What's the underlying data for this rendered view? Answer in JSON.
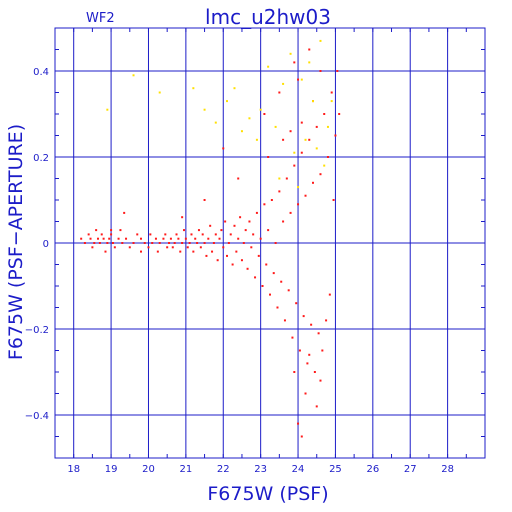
{
  "chart_data": {
    "type": "scatter",
    "title": "lmc_u2hw03",
    "subtitle": "WF2",
    "xlabel": "F675W (PSF)",
    "ylabel": "F675W (PSF−APERTURE)",
    "xlim": [
      17.5,
      29.0
    ],
    "ylim": [
      -0.5,
      0.5
    ],
    "xticks": [
      18,
      19,
      20,
      21,
      22,
      23,
      24,
      25,
      26,
      27,
      28
    ],
    "yticks": [
      -0.4,
      -0.2,
      0,
      0.2,
      0.4
    ],
    "xtick_labels": [
      "18",
      "19",
      "20",
      "21",
      "22",
      "23",
      "24",
      "25",
      "26",
      "27",
      "28"
    ],
    "ytick_labels": [
      "−0.4",
      "−0.2",
      "0",
      "0.2",
      "0.4"
    ],
    "grid": true,
    "colors": {
      "axes": "#1c1cc8",
      "primary": "#ff1a1a",
      "secondary": "#ffe000",
      "background": "#ffffff"
    },
    "series": [
      {
        "color": "#ff1a1a",
        "points": [
          [
            18.2,
            0.01
          ],
          [
            18.3,
            0.0
          ],
          [
            18.4,
            0.02
          ],
          [
            18.45,
            0.01
          ],
          [
            18.5,
            -0.01
          ],
          [
            18.55,
            0.0
          ],
          [
            18.6,
            0.03
          ],
          [
            18.65,
            0.01
          ],
          [
            18.7,
            0.0
          ],
          [
            18.75,
            0.02
          ],
          [
            18.8,
            0.01
          ],
          [
            18.85,
            -0.02
          ],
          [
            18.9,
            0.0
          ],
          [
            18.95,
            0.01
          ],
          [
            19.0,
            0.02
          ],
          [
            19.05,
            0.0
          ],
          [
            19.1,
            -0.01
          ],
          [
            19.2,
            0.01
          ],
          [
            19.25,
            0.03
          ],
          [
            19.3,
            0.0
          ],
          [
            19.35,
            0.07
          ],
          [
            19.4,
            0.01
          ],
          [
            19.5,
            -0.01
          ],
          [
            19.6,
            0.0
          ],
          [
            19.7,
            0.02
          ],
          [
            19.8,
            0.01
          ],
          [
            19.9,
            0.0
          ],
          [
            20.0,
            -0.01
          ],
          [
            20.05,
            0.02
          ],
          [
            20.1,
            0.0
          ],
          [
            20.2,
            0.01
          ],
          [
            20.25,
            -0.02
          ],
          [
            20.3,
            0.0
          ],
          [
            20.4,
            0.01
          ],
          [
            20.45,
            0.02
          ],
          [
            20.5,
            -0.01
          ],
          [
            20.55,
            0.0
          ],
          [
            20.6,
            0.01
          ],
          [
            20.65,
            -0.01
          ],
          [
            20.7,
            0.0
          ],
          [
            20.75,
            0.02
          ],
          [
            20.8,
            0.01
          ],
          [
            20.85,
            -0.02
          ],
          [
            20.9,
            0.0
          ],
          [
            20.95,
            0.03
          ],
          [
            21.0,
            0.01
          ],
          [
            21.05,
            -0.01
          ],
          [
            21.1,
            0.0
          ],
          [
            21.15,
            0.02
          ],
          [
            21.2,
            -0.02
          ],
          [
            21.25,
            0.01
          ],
          [
            21.3,
            0.0
          ],
          [
            21.35,
            0.03
          ],
          [
            21.4,
            -0.01
          ],
          [
            21.45,
            0.02
          ],
          [
            21.5,
            0.0
          ],
          [
            21.55,
            -0.03
          ],
          [
            21.6,
            0.01
          ],
          [
            21.65,
            0.04
          ],
          [
            21.7,
            -0.02
          ],
          [
            21.75,
            0.0
          ],
          [
            21.8,
            0.02
          ],
          [
            21.85,
            -0.04
          ],
          [
            21.9,
            0.01
          ],
          [
            21.95,
            0.03
          ],
          [
            22.0,
            -0.01
          ],
          [
            22.05,
            0.05
          ],
          [
            22.1,
            -0.03
          ],
          [
            22.15,
            0.0
          ],
          [
            22.2,
            0.02
          ],
          [
            22.25,
            -0.05
          ],
          [
            22.3,
            0.04
          ],
          [
            22.35,
            -0.02
          ],
          [
            22.4,
            0.01
          ],
          [
            22.45,
            0.06
          ],
          [
            22.5,
            -0.04
          ],
          [
            22.55,
            0.0
          ],
          [
            22.6,
            0.03
          ],
          [
            22.65,
            -0.06
          ],
          [
            22.7,
            0.05
          ],
          [
            22.75,
            -0.01
          ],
          [
            22.8,
            0.02
          ],
          [
            22.85,
            -0.08
          ],
          [
            22.9,
            0.07
          ],
          [
            22.95,
            -0.03
          ],
          [
            23.0,
            0.01
          ],
          [
            23.05,
            -0.1
          ],
          [
            23.1,
            0.09
          ],
          [
            23.15,
            -0.05
          ],
          [
            23.2,
            0.03
          ],
          [
            23.25,
            -0.12
          ],
          [
            23.3,
            0.1
          ],
          [
            23.35,
            -0.07
          ],
          [
            23.4,
            0.0
          ],
          [
            23.45,
            -0.15
          ],
          [
            23.5,
            0.12
          ],
          [
            23.55,
            -0.09
          ],
          [
            23.6,
            0.05
          ],
          [
            23.65,
            -0.18
          ],
          [
            23.7,
            0.15
          ],
          [
            23.75,
            -0.11
          ],
          [
            23.8,
            0.07
          ],
          [
            23.85,
            -0.22
          ],
          [
            23.9,
            0.18
          ],
          [
            23.95,
            -0.14
          ],
          [
            24.0,
            0.09
          ],
          [
            24.05,
            -0.25
          ],
          [
            24.1,
            0.21
          ],
          [
            24.15,
            -0.17
          ],
          [
            24.2,
            0.11
          ],
          [
            24.25,
            -0.28
          ],
          [
            24.3,
            0.24
          ],
          [
            24.35,
            -0.19
          ],
          [
            24.4,
            0.14
          ],
          [
            24.45,
            -0.3
          ],
          [
            24.5,
            0.27
          ],
          [
            24.55,
            -0.21
          ],
          [
            24.6,
            0.16
          ],
          [
            24.65,
            -0.25
          ],
          [
            24.7,
            0.3
          ],
          [
            24.75,
            -0.18
          ],
          [
            24.8,
            0.2
          ],
          [
            24.85,
            -0.12
          ],
          [
            24.9,
            0.35
          ],
          [
            24.95,
            0.1
          ],
          [
            25.0,
            0.25
          ],
          [
            25.05,
            0.4
          ],
          [
            25.1,
            0.3
          ],
          [
            22.0,
            0.22
          ],
          [
            23.1,
            0.3
          ],
          [
            23.5,
            0.35
          ],
          [
            23.9,
            0.42
          ],
          [
            24.0,
            0.38
          ],
          [
            24.3,
            0.45
          ],
          [
            23.8,
            0.26
          ],
          [
            24.6,
            0.4
          ],
          [
            24.4,
            0.33
          ],
          [
            24.1,
            0.28
          ],
          [
            23.6,
            0.24
          ],
          [
            23.2,
            0.2
          ],
          [
            24.2,
            -0.35
          ],
          [
            24.5,
            -0.38
          ],
          [
            24.0,
            -0.42
          ],
          [
            24.1,
            -0.45
          ],
          [
            23.9,
            -0.3
          ],
          [
            24.3,
            -0.26
          ],
          [
            24.6,
            -0.32
          ],
          [
            22.4,
            0.15
          ],
          [
            21.5,
            0.1
          ],
          [
            20.9,
            0.06
          ],
          [
            19.8,
            -0.02
          ],
          [
            19.0,
            0.03
          ]
        ]
      },
      {
        "color": "#ffe000",
        "points": [
          [
            19.6,
            0.39
          ],
          [
            18.9,
            0.31
          ],
          [
            20.3,
            0.35
          ],
          [
            21.2,
            0.36
          ],
          [
            21.5,
            0.31
          ],
          [
            21.8,
            0.28
          ],
          [
            22.1,
            0.33
          ],
          [
            22.3,
            0.36
          ],
          [
            22.7,
            0.29
          ],
          [
            23.0,
            0.31
          ],
          [
            23.2,
            0.41
          ],
          [
            23.6,
            0.37
          ],
          [
            23.8,
            0.44
          ],
          [
            24.1,
            0.38
          ],
          [
            24.3,
            0.42
          ],
          [
            24.4,
            0.33
          ],
          [
            24.6,
            0.47
          ],
          [
            24.8,
            0.27
          ],
          [
            24.9,
            0.33
          ],
          [
            24.5,
            0.22
          ],
          [
            24.2,
            0.24
          ],
          [
            23.9,
            0.21
          ],
          [
            23.4,
            0.27
          ],
          [
            22.9,
            0.24
          ],
          [
            22.5,
            0.26
          ],
          [
            23.5,
            0.15
          ],
          [
            24.0,
            0.13
          ],
          [
            24.7,
            0.18
          ]
        ]
      }
    ]
  }
}
